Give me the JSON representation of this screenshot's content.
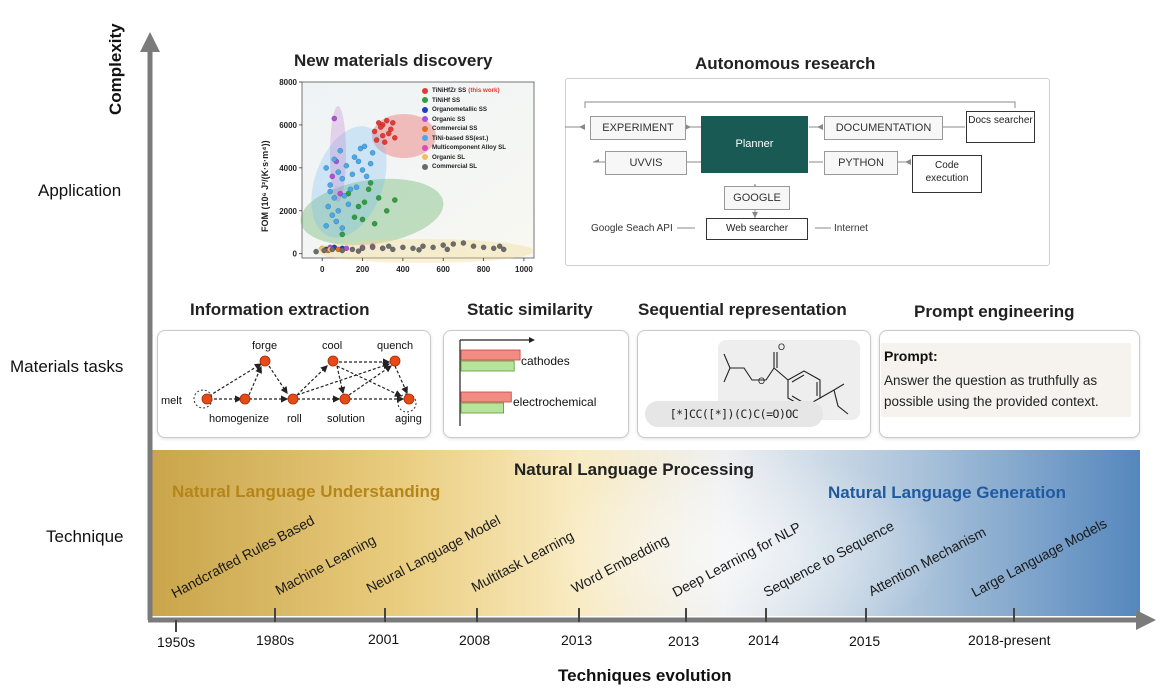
{
  "axes": {
    "y_label": "Complexity",
    "x_label": "Techniques evolution",
    "levels": [
      "Application",
      "Materials tasks",
      "Technique"
    ]
  },
  "application": {
    "discovery": {
      "title": "New materials discovery",
      "chart_data": {
        "type": "scatter",
        "title": "New materials discovery",
        "xlabel": "",
        "ylabel": "FOM (10^6 J^2/(K·s·m^4))",
        "ylabel_text": "FOM (10⁶ J²/(K·s·m⁴))",
        "x_ticks": [
          "0",
          "200",
          "400",
          "600",
          "800",
          "1000"
        ],
        "y_ticks": [
          "0",
          "2000",
          "4000",
          "6000",
          "8000"
        ],
        "xlim": [
          -100,
          1050
        ],
        "ylim": [
          -200,
          8000
        ],
        "legend_position": "top-right",
        "series": [
          {
            "name": "TiNiHfZr SS",
            "suffix": "(this work)",
            "color": "#e53935",
            "points": [
              [
                260,
                5700
              ],
              [
                280,
                6100
              ],
              [
                300,
                5500
              ],
              [
                320,
                6200
              ],
              [
                340,
                5800
              ],
              [
                360,
                5400
              ],
              [
                300,
                6000
              ],
              [
                330,
                5600
              ],
              [
                270,
                5300
              ],
              [
                350,
                6100
              ],
              [
                310,
                5200
              ],
              [
                290,
                5900
              ]
            ]
          },
          {
            "name": "TiNiHf SS",
            "color": "#2e9e3e",
            "points": [
              [
                130,
                2800
              ],
              [
                180,
                2200
              ],
              [
                240,
                3300
              ],
              [
                280,
                2600
              ],
              [
                320,
                2000
              ],
              [
                160,
                1700
              ],
              [
                210,
                2400
              ],
              [
                100,
                900
              ],
              [
                260,
                1400
              ],
              [
                360,
                2500
              ],
              [
                230,
                3000
              ],
              [
                200,
                1600
              ]
            ]
          },
          {
            "name": "Organometallic SS",
            "color": "#1f3fbf",
            "points": [
              [
                20,
                200
              ],
              [
                60,
                300
              ],
              [
                100,
                250
              ]
            ]
          },
          {
            "name": "Organic SS",
            "color": "#b04fd8",
            "points": [
              [
                60,
                6300
              ],
              [
                70,
                4300
              ],
              [
                50,
                3600
              ],
              [
                90,
                2800
              ],
              [
                40,
                300
              ],
              [
                120,
                250
              ]
            ]
          },
          {
            "name": "Commercial SS",
            "color": "#e07020",
            "points": [
              [
                30,
                150
              ],
              [
                80,
                200
              ]
            ]
          },
          {
            "name": "TiNi-based SS(est.)",
            "color": "#4aa8e8",
            "points": [
              [
                20,
                4000
              ],
              [
                40,
                3200
              ],
              [
                60,
                4400
              ],
              [
                80,
                3800
              ],
              [
                100,
                3500
              ],
              [
                120,
                4100
              ],
              [
                150,
                3700
              ],
              [
                180,
                4300
              ],
              [
                200,
                3900
              ],
              [
                220,
                3600
              ],
              [
                60,
                2600
              ],
              [
                30,
                2200
              ],
              [
                80,
                2000
              ],
              [
                110,
                2700
              ],
              [
                140,
                3000
              ],
              [
                90,
                4800
              ],
              [
                170,
                3100
              ],
              [
                240,
                4200
              ],
              [
                50,
                1800
              ],
              [
                130,
                2300
              ],
              [
                20,
                1300
              ],
              [
                70,
                1500
              ],
              [
                100,
                1200
              ],
              [
                190,
                4900
              ],
              [
                210,
                5000
              ],
              [
                250,
                4700
              ],
              [
                40,
                2900
              ],
              [
                160,
                4500
              ]
            ]
          },
          {
            "name": "Multicomponent Alloy SL",
            "color": "#d64fb8",
            "points": [
              [
                200,
                300
              ],
              [
                250,
                350
              ],
              [
                300,
                250
              ]
            ]
          },
          {
            "name": "Organic SL",
            "color": "#f0c060",
            "points": [
              [
                0,
                250
              ],
              [
                40,
                200
              ]
            ]
          },
          {
            "name": "Commercial SL",
            "color": "#6b6b6b",
            "points": [
              [
                -30,
                100
              ],
              [
                10,
                150
              ],
              [
                50,
                200
              ],
              [
                100,
                150
              ],
              [
                150,
                200
              ],
              [
                200,
                250
              ],
              [
                250,
                300
              ],
              [
                300,
                250
              ],
              [
                350,
                200
              ],
              [
                400,
                300
              ],
              [
                450,
                250
              ],
              [
                500,
                350
              ],
              [
                550,
                300
              ],
              [
                600,
                400
              ],
              [
                650,
                450
              ],
              [
                700,
                500
              ],
              [
                750,
                350
              ],
              [
                800,
                300
              ],
              [
                850,
                250
              ],
              [
                900,
                200
              ],
              [
                880,
                350
              ],
              [
                620,
                200
              ],
              [
                480,
                180
              ],
              [
                330,
                350
              ],
              [
                180,
                120
              ]
            ]
          }
        ]
      }
    },
    "autonomous": {
      "title": "Autonomous research",
      "planner": "Planner",
      "experiment": "EXPERIMENT",
      "documentation": "DOCUMENTATION",
      "uvvis": "UVVIS",
      "python": "PYTHON",
      "google": "GOOGLE",
      "docs_searcher": "Docs searcher",
      "code_execution": "Code execution",
      "web_searcher": "Web searcher",
      "google_api": "Google Seach API",
      "internet": "Internet"
    }
  },
  "tasks": {
    "information_extraction": {
      "title": "Information extraction",
      "nodes": [
        "forge",
        "cool",
        "quench",
        "melt",
        "homogenize",
        "roll",
        "solution",
        "aging"
      ]
    },
    "static_similarity": {
      "title": "Static similarity",
      "chart_data": {
        "type": "bar",
        "categories": [
          "cathodes",
          "electrochemical"
        ],
        "series": [
          {
            "name": "red",
            "values": [
              1.0,
              0.85
            ]
          },
          {
            "name": "green",
            "values": [
              0.9,
              0.72
            ]
          }
        ],
        "xlim": [
          0,
          1.15
        ]
      }
    },
    "sequential": {
      "title": "Sequential representation",
      "smiles": "[*]CC([*])(C)C(=O)OC"
    },
    "prompt": {
      "title": "Prompt engineering",
      "label": "Prompt:",
      "text": "Answer the question as truthfully as possible using the provided context."
    }
  },
  "technique": {
    "nlp": "Natural Language Processing",
    "nlu": "Natural Language Understanding",
    "nlg": "Natural Language Generation",
    "stages": [
      "Handcrafted Rules Based",
      "Machine Learning",
      "Neural Language Model",
      "Multitask Learning",
      "Word Embedding",
      "Deep Learning for NLP",
      "Sequence to Sequence",
      "Attention Mechanism",
      "Large Language Models"
    ],
    "years": [
      "1950s",
      "1980s",
      "2001",
      "2008",
      "2013",
      "2013",
      "2014",
      "2015",
      "2018-present"
    ]
  },
  "colors": {
    "nlu": "#b5851a",
    "nlg": "#1f5aa0",
    "planner": "#1a5a55",
    "axis": "#7b7b7b"
  }
}
